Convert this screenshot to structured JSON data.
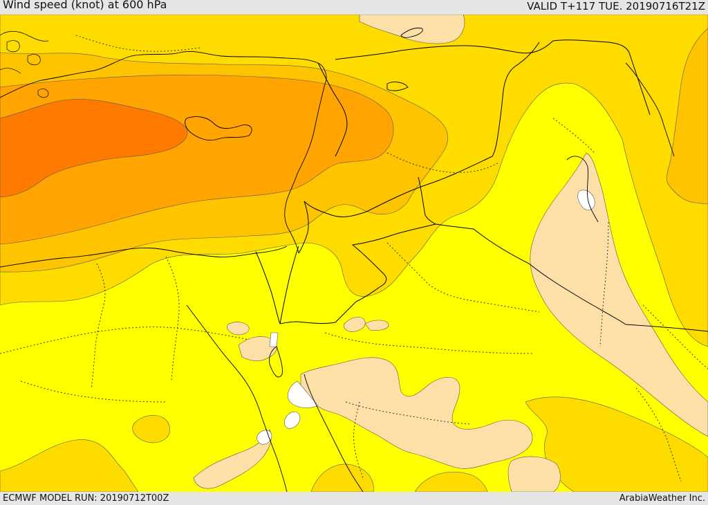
{
  "header": {
    "title": "Wind speed (knot) at 600 hPa",
    "valid_time": "VALID T+117 TUE. 20190716T21Z"
  },
  "footer": {
    "model_run": "ECMWF MODEL RUN: 20190712T00Z",
    "credit": "ArabiaWeather Inc."
  },
  "colors": {
    "cream": "#fde0a8",
    "yellow": "#ffff00",
    "gold": "#ffdc00",
    "light_orange": "#ffc400",
    "orange": "#ffa400",
    "dark_orange": "#ff7b00",
    "border": "#000000"
  }
}
